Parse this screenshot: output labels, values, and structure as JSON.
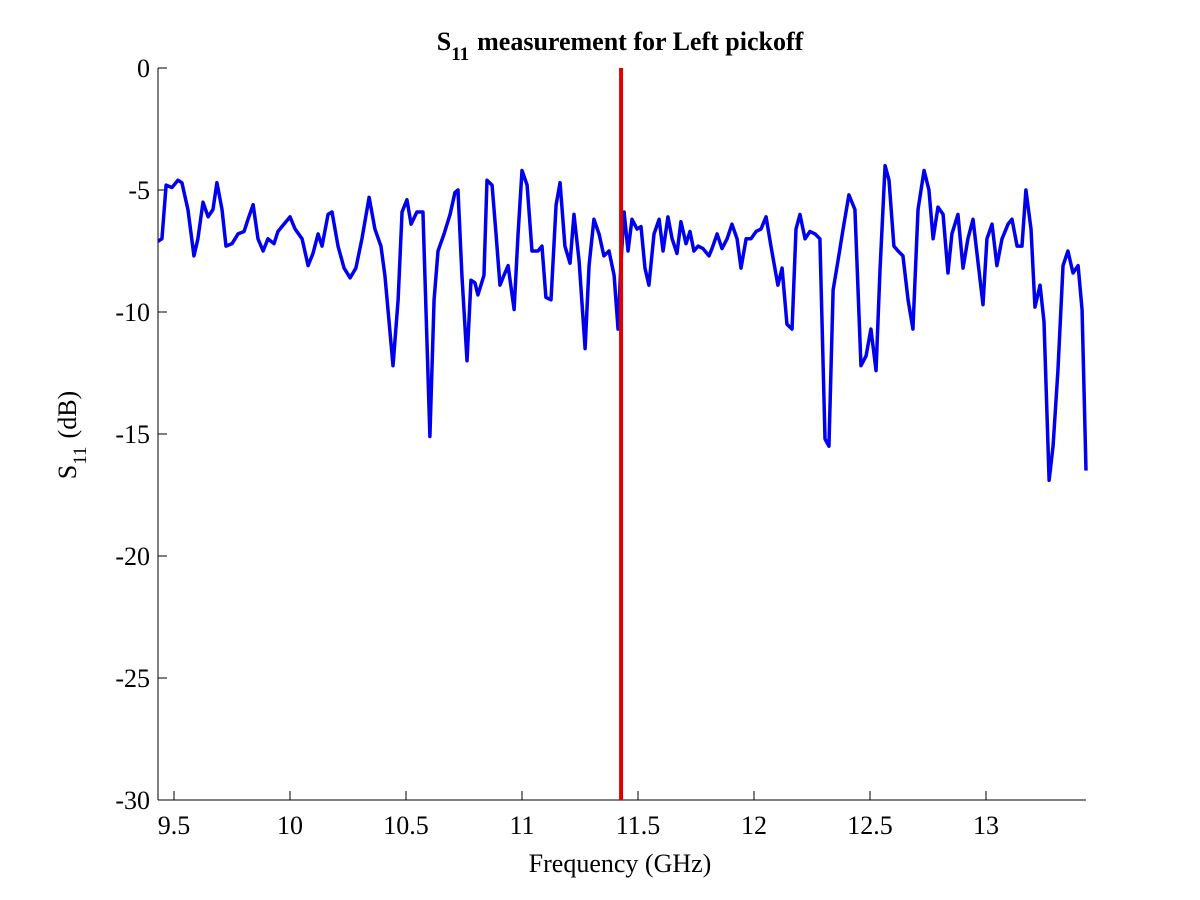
{
  "chart_data": {
    "type": "line",
    "title": {
      "main": "S",
      "sub": "11",
      "rest": "measurement for Left pickoff"
    },
    "xlabel": "Frequency (GHz)",
    "ylabel": {
      "main": "S",
      "sub": "11",
      "rest": "(dB)"
    },
    "xlim": [
      9.431,
      13.431
    ],
    "ylim": [
      -30,
      0
    ],
    "xticks": [
      9.5,
      10,
      10.5,
      11,
      11.5,
      12,
      12.5,
      13
    ],
    "yticks": [
      -30,
      -25,
      -20,
      -15,
      -10,
      -5,
      0
    ],
    "color": "#0000ee",
    "marker_x": 11.427,
    "marker_color": "#e00000",
    "x": [
      9.431,
      9.448,
      9.466,
      9.491,
      9.517,
      9.534,
      9.56,
      9.586,
      9.603,
      9.625,
      9.647,
      9.668,
      9.685,
      9.707,
      9.724,
      9.75,
      9.776,
      9.802,
      9.819,
      9.841,
      9.862,
      9.884,
      9.905,
      9.931,
      9.948,
      9.974,
      10.0,
      10.022,
      10.052,
      10.078,
      10.099,
      10.121,
      10.138,
      10.164,
      10.181,
      10.207,
      10.233,
      10.259,
      10.284,
      10.31,
      10.341,
      10.366,
      10.392,
      10.409,
      10.444,
      10.466,
      10.483,
      10.504,
      10.522,
      10.547,
      10.573,
      10.603,
      10.621,
      10.638,
      10.664,
      10.69,
      10.711,
      10.724,
      10.741,
      10.763,
      10.78,
      10.797,
      10.81,
      10.836,
      10.849,
      10.871,
      10.888,
      10.905,
      10.922,
      10.94,
      10.966,
      10.983,
      11.0,
      11.022,
      11.043,
      11.069,
      11.086,
      11.103,
      11.125,
      11.147,
      11.164,
      11.185,
      11.207,
      11.224,
      11.246,
      11.272,
      11.289,
      11.31,
      11.332,
      11.353,
      11.375,
      11.397,
      11.414,
      11.427,
      11.44,
      11.457,
      11.474,
      11.496,
      11.513,
      11.53,
      11.547,
      11.569,
      11.591,
      11.608,
      11.629,
      11.647,
      11.668,
      11.685,
      11.707,
      11.724,
      11.741,
      11.759,
      11.78,
      11.806,
      11.819,
      11.841,
      11.862,
      11.884,
      11.905,
      11.927,
      11.944,
      11.966,
      11.987,
      12.009,
      12.03,
      12.052,
      12.073,
      12.103,
      12.121,
      12.142,
      12.164,
      12.181,
      12.198,
      12.22,
      12.241,
      12.263,
      12.284,
      12.306,
      12.323,
      12.341,
      12.362,
      12.384,
      12.409,
      12.435,
      12.461,
      12.483,
      12.504,
      12.526,
      12.543,
      12.565,
      12.582,
      12.603,
      12.621,
      12.642,
      12.664,
      12.685,
      12.707,
      12.733,
      12.754,
      12.772,
      12.793,
      12.815,
      12.836,
      12.853,
      12.879,
      12.901,
      12.922,
      12.944,
      12.966,
      12.987,
      13.004,
      13.026,
      13.047,
      13.069,
      13.095,
      13.112,
      13.134,
      13.155,
      13.172,
      13.194,
      13.211,
      13.233,
      13.25,
      13.272,
      13.289,
      13.31,
      13.332,
      13.353,
      13.375,
      13.397,
      13.414,
      13.431
    ],
    "values": [
      -7.1,
      -7.0,
      -4.8,
      -4.9,
      -4.6,
      -4.7,
      -5.8,
      -7.7,
      -7.0,
      -5.5,
      -6.1,
      -5.8,
      -4.7,
      -5.8,
      -7.3,
      -7.2,
      -6.8,
      -6.7,
      -6.2,
      -5.6,
      -7.0,
      -7.5,
      -7.0,
      -7.2,
      -6.7,
      -6.4,
      -6.1,
      -6.6,
      -7.0,
      -8.1,
      -7.6,
      -6.8,
      -7.3,
      -6.0,
      -5.9,
      -7.3,
      -8.2,
      -8.6,
      -8.2,
      -7.0,
      -5.3,
      -6.6,
      -7.3,
      -8.5,
      -12.2,
      -9.5,
      -5.9,
      -5.4,
      -6.4,
      -5.9,
      -5.9,
      -15.1,
      -9.5,
      -7.5,
      -6.8,
      -6.0,
      -5.1,
      -5.0,
      -8.5,
      -12.0,
      -8.7,
      -8.8,
      -9.3,
      -8.5,
      -4.6,
      -4.8,
      -6.8,
      -8.9,
      -8.5,
      -8.1,
      -9.9,
      -6.8,
      -4.2,
      -4.8,
      -7.5,
      -7.5,
      -7.3,
      -9.4,
      -9.5,
      -5.6,
      -4.7,
      -7.3,
      -8.0,
      -6.0,
      -7.9,
      -11.5,
      -8.1,
      -6.2,
      -6.8,
      -7.7,
      -7.5,
      -8.5,
      -10.7,
      -7.9,
      -5.9,
      -7.5,
      -6.2,
      -6.6,
      -6.5,
      -8.2,
      -8.9,
      -6.8,
      -6.2,
      -7.5,
      -6.1,
      -7.0,
      -7.6,
      -6.3,
      -7.2,
      -6.7,
      -7.5,
      -7.3,
      -7.4,
      -7.7,
      -7.4,
      -6.8,
      -7.4,
      -7.0,
      -6.4,
      -7.0,
      -8.2,
      -7.0,
      -7.0,
      -6.7,
      -6.6,
      -6.1,
      -7.3,
      -8.9,
      -8.2,
      -10.5,
      -10.7,
      -6.6,
      -6.0,
      -7.0,
      -6.7,
      -6.8,
      -7.0,
      -15.2,
      -15.5,
      -9.1,
      -7.9,
      -6.6,
      -5.2,
      -5.8,
      -12.2,
      -11.8,
      -10.7,
      -12.4,
      -8.3,
      -4.0,
      -4.6,
      -7.3,
      -7.5,
      -7.7,
      -9.5,
      -10.7,
      -5.8,
      -4.2,
      -5.0,
      -7.0,
      -5.7,
      -6.0,
      -8.4,
      -6.8,
      -6.0,
      -8.2,
      -7.0,
      -6.2,
      -8.0,
      -9.7,
      -7.0,
      -6.4,
      -8.1,
      -7.0,
      -6.4,
      -6.2,
      -7.3,
      -7.3,
      -5.0,
      -6.6,
      -9.8,
      -8.9,
      -10.4,
      -16.9,
      -15.5,
      -12.4,
      -8.1,
      -7.5,
      -8.4,
      -8.1,
      -9.9,
      -16.5
    ]
  }
}
